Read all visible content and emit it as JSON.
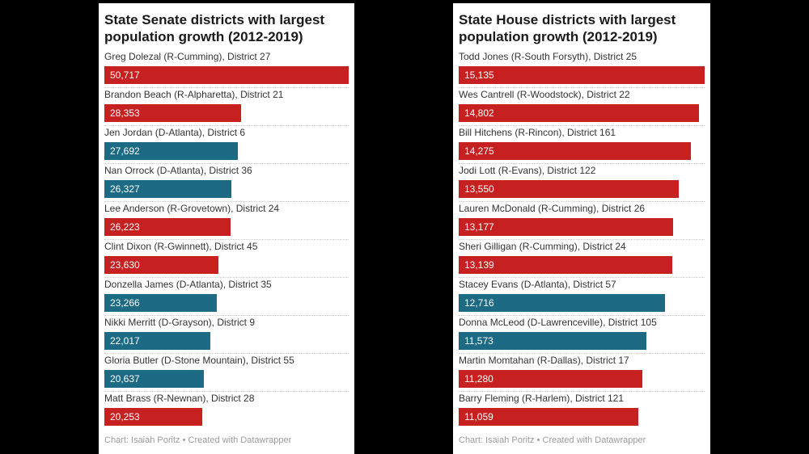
{
  "colors": {
    "background": "#000000",
    "panel": "#ffffff",
    "republican": "#c62120",
    "democrat": "#1d6a85",
    "title_text": "#1a1a1a",
    "label_text": "#333333",
    "bar_value_text": "#ffffff",
    "footer_text": "#9b9b9b",
    "separator": "#cccccc"
  },
  "chart_data": [
    {
      "type": "bar",
      "orientation": "horizontal",
      "title": "State Senate districts with largest population growth (2012-2019)",
      "footer": "Chart: Isaiah Poritz • Created with Datawrapper",
      "legend": "none",
      "grid": false,
      "xlim": [
        0,
        50717
      ],
      "categories": [
        "Greg Dolezal (R-Cumming), District 27",
        "Brandon Beach (R-Alpharetta), District 21",
        "Jen Jordan (D-Atlanta), District 6",
        "Nan Orrock (D-Atlanta), District 36",
        "Lee Anderson (R-Grovetown), District 24",
        "Clint Dixon (R-Gwinnett), District 45",
        "Donzella James (D-Atlanta), District 35",
        "Nikki Merritt (D-Grayson), District 9",
        "Gloria Butler (D-Stone Mountain), District 55",
        "Matt Brass (R-Newnan), District 28"
      ],
      "values": [
        50717,
        28353,
        27692,
        26327,
        26223,
        23630,
        23266,
        22017,
        20637,
        20253
      ],
      "value_labels": [
        "50,717",
        "28,353",
        "27,692",
        "26,327",
        "26,223",
        "23,630",
        "23,266",
        "22,017",
        "20,637",
        "20,253"
      ],
      "parties": [
        "R",
        "R",
        "D",
        "D",
        "R",
        "R",
        "D",
        "D",
        "D",
        "R"
      ]
    },
    {
      "type": "bar",
      "orientation": "horizontal",
      "title": "State House districts with largest population growth (2012-2019)",
      "footer": "Chart: Isaiah Poritz • Created with Datawrapper",
      "legend": "none",
      "grid": false,
      "xlim": [
        0,
        15135
      ],
      "categories": [
        "Todd Jones (R-South Forsyth), District 25",
        "Wes Cantrell (R-Woodstock), District 22",
        "Bill Hitchens (R-Rincon), District 161",
        "Jodi Lott (R-Evans), District 122",
        "Lauren McDonald (R-Cumming), District 26",
        "Sheri Gilligan (R-Cumming), District 24",
        "Stacey Evans (D-Atlanta), District 57",
        "Donna McLeod (D-Lawrenceville), District 105",
        "Martin Momtahan (R-Dallas), District 17",
        "Barry Fleming (R-Harlem), District 121"
      ],
      "values": [
        15135,
        14802,
        14275,
        13550,
        13177,
        13139,
        12716,
        11573,
        11280,
        11059
      ],
      "value_labels": [
        "15,135",
        "14,802",
        "14,275",
        "13,550",
        "13,177",
        "13,139",
        "12,716",
        "11,573",
        "11,280",
        "11,059"
      ],
      "parties": [
        "R",
        "R",
        "R",
        "R",
        "R",
        "R",
        "D",
        "D",
        "R",
        "R"
      ]
    }
  ]
}
